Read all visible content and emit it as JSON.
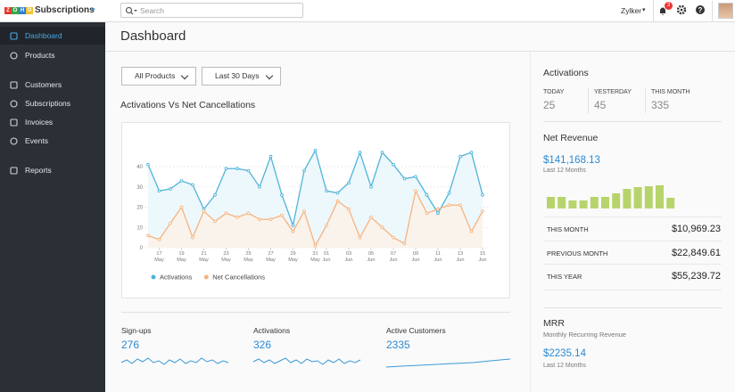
{
  "header": {
    "logo_letters": [
      "Z",
      "O",
      "H",
      "O"
    ],
    "app_name": "Subscriptions",
    "search_placeholder": "Search",
    "org": "Zylker",
    "notifications": 3
  },
  "sidebar": {
    "items": [
      "Dashboard",
      "Products",
      "Customers",
      "Subscriptions",
      "Invoices",
      "Events",
      "Reports"
    ],
    "active": 0
  },
  "page_title": "Dashboard",
  "filters": [
    "All Products",
    "Last 30 Days"
  ],
  "chart_data": {
    "type": "line",
    "title": "Activations Vs Net Cancellations",
    "categories": [
      null,
      "17 May",
      null,
      "19 May",
      null,
      "21 May",
      null,
      "23 May",
      null,
      "25 May",
      null,
      "27 May",
      null,
      "29 May",
      null,
      "31 May",
      "01 Jun",
      null,
      "03 Jun",
      null,
      "05 Jun",
      null,
      "07 Jun",
      null,
      "09 Jun",
      null,
      "11 Jun",
      null,
      "13 Jun",
      null,
      "15 Jun"
    ],
    "series": [
      {
        "name": "Activations",
        "color": "#4fb3d9",
        "fill": "#e9f6fb",
        "values": [
          41,
          28,
          29,
          33,
          31,
          19,
          26,
          39,
          39,
          38,
          30,
          45,
          26,
          11,
          38,
          48,
          28,
          27,
          32,
          47,
          30,
          47,
          41,
          34,
          35,
          26,
          17,
          27,
          45,
          47,
          26
        ]
      },
      {
        "name": "Net Cancellations",
        "color": "#f7b27f",
        "fill": "#fdf1e6",
        "values": [
          6,
          4,
          12,
          20,
          5,
          18,
          13,
          17,
          15,
          17,
          14,
          14,
          16,
          8,
          18,
          1,
          11,
          23,
          19,
          5,
          15,
          10,
          5,
          2,
          28,
          17,
          19,
          21,
          21,
          8,
          18
        ]
      }
    ],
    "ylim": [
      0,
      40
    ],
    "yticks": [
      0,
      10,
      20,
      30,
      40
    ],
    "grid": true,
    "legend": "bottom-left"
  },
  "activations": {
    "title": "Activations",
    "stats": [
      {
        "label": "TODAY",
        "value": 25
      },
      {
        "label": "YESTERDAY",
        "value": 45
      },
      {
        "label": "THIS MONTH",
        "value": 335
      }
    ]
  },
  "net_revenue": {
    "title": "Net Revenue",
    "amount": "$141,168.13",
    "period": "Last 12 Months",
    "bars": {
      "type": "bar",
      "color": "#b7d46c",
      "values": [
        13,
        13,
        9,
        9,
        13,
        13,
        17,
        22,
        24,
        25,
        26,
        12
      ]
    },
    "rows": [
      {
        "label": "THIS MONTH",
        "value": "$10,969.23"
      },
      {
        "label": "PREVIOUS MONTH",
        "value": "$22,849.61"
      },
      {
        "label": "THIS YEAR",
        "value": "$55,239.72"
      }
    ]
  },
  "mrr": {
    "title": "MRR",
    "subtitle": "Monthly Recurring Revenue",
    "amount": "$2235.14",
    "period": "Last 12 Months"
  },
  "summary": [
    {
      "label": "Sign-ups",
      "value": 276
    },
    {
      "label": "Activations",
      "value": 326
    },
    {
      "label": "Active Customers",
      "value": 2335
    }
  ]
}
